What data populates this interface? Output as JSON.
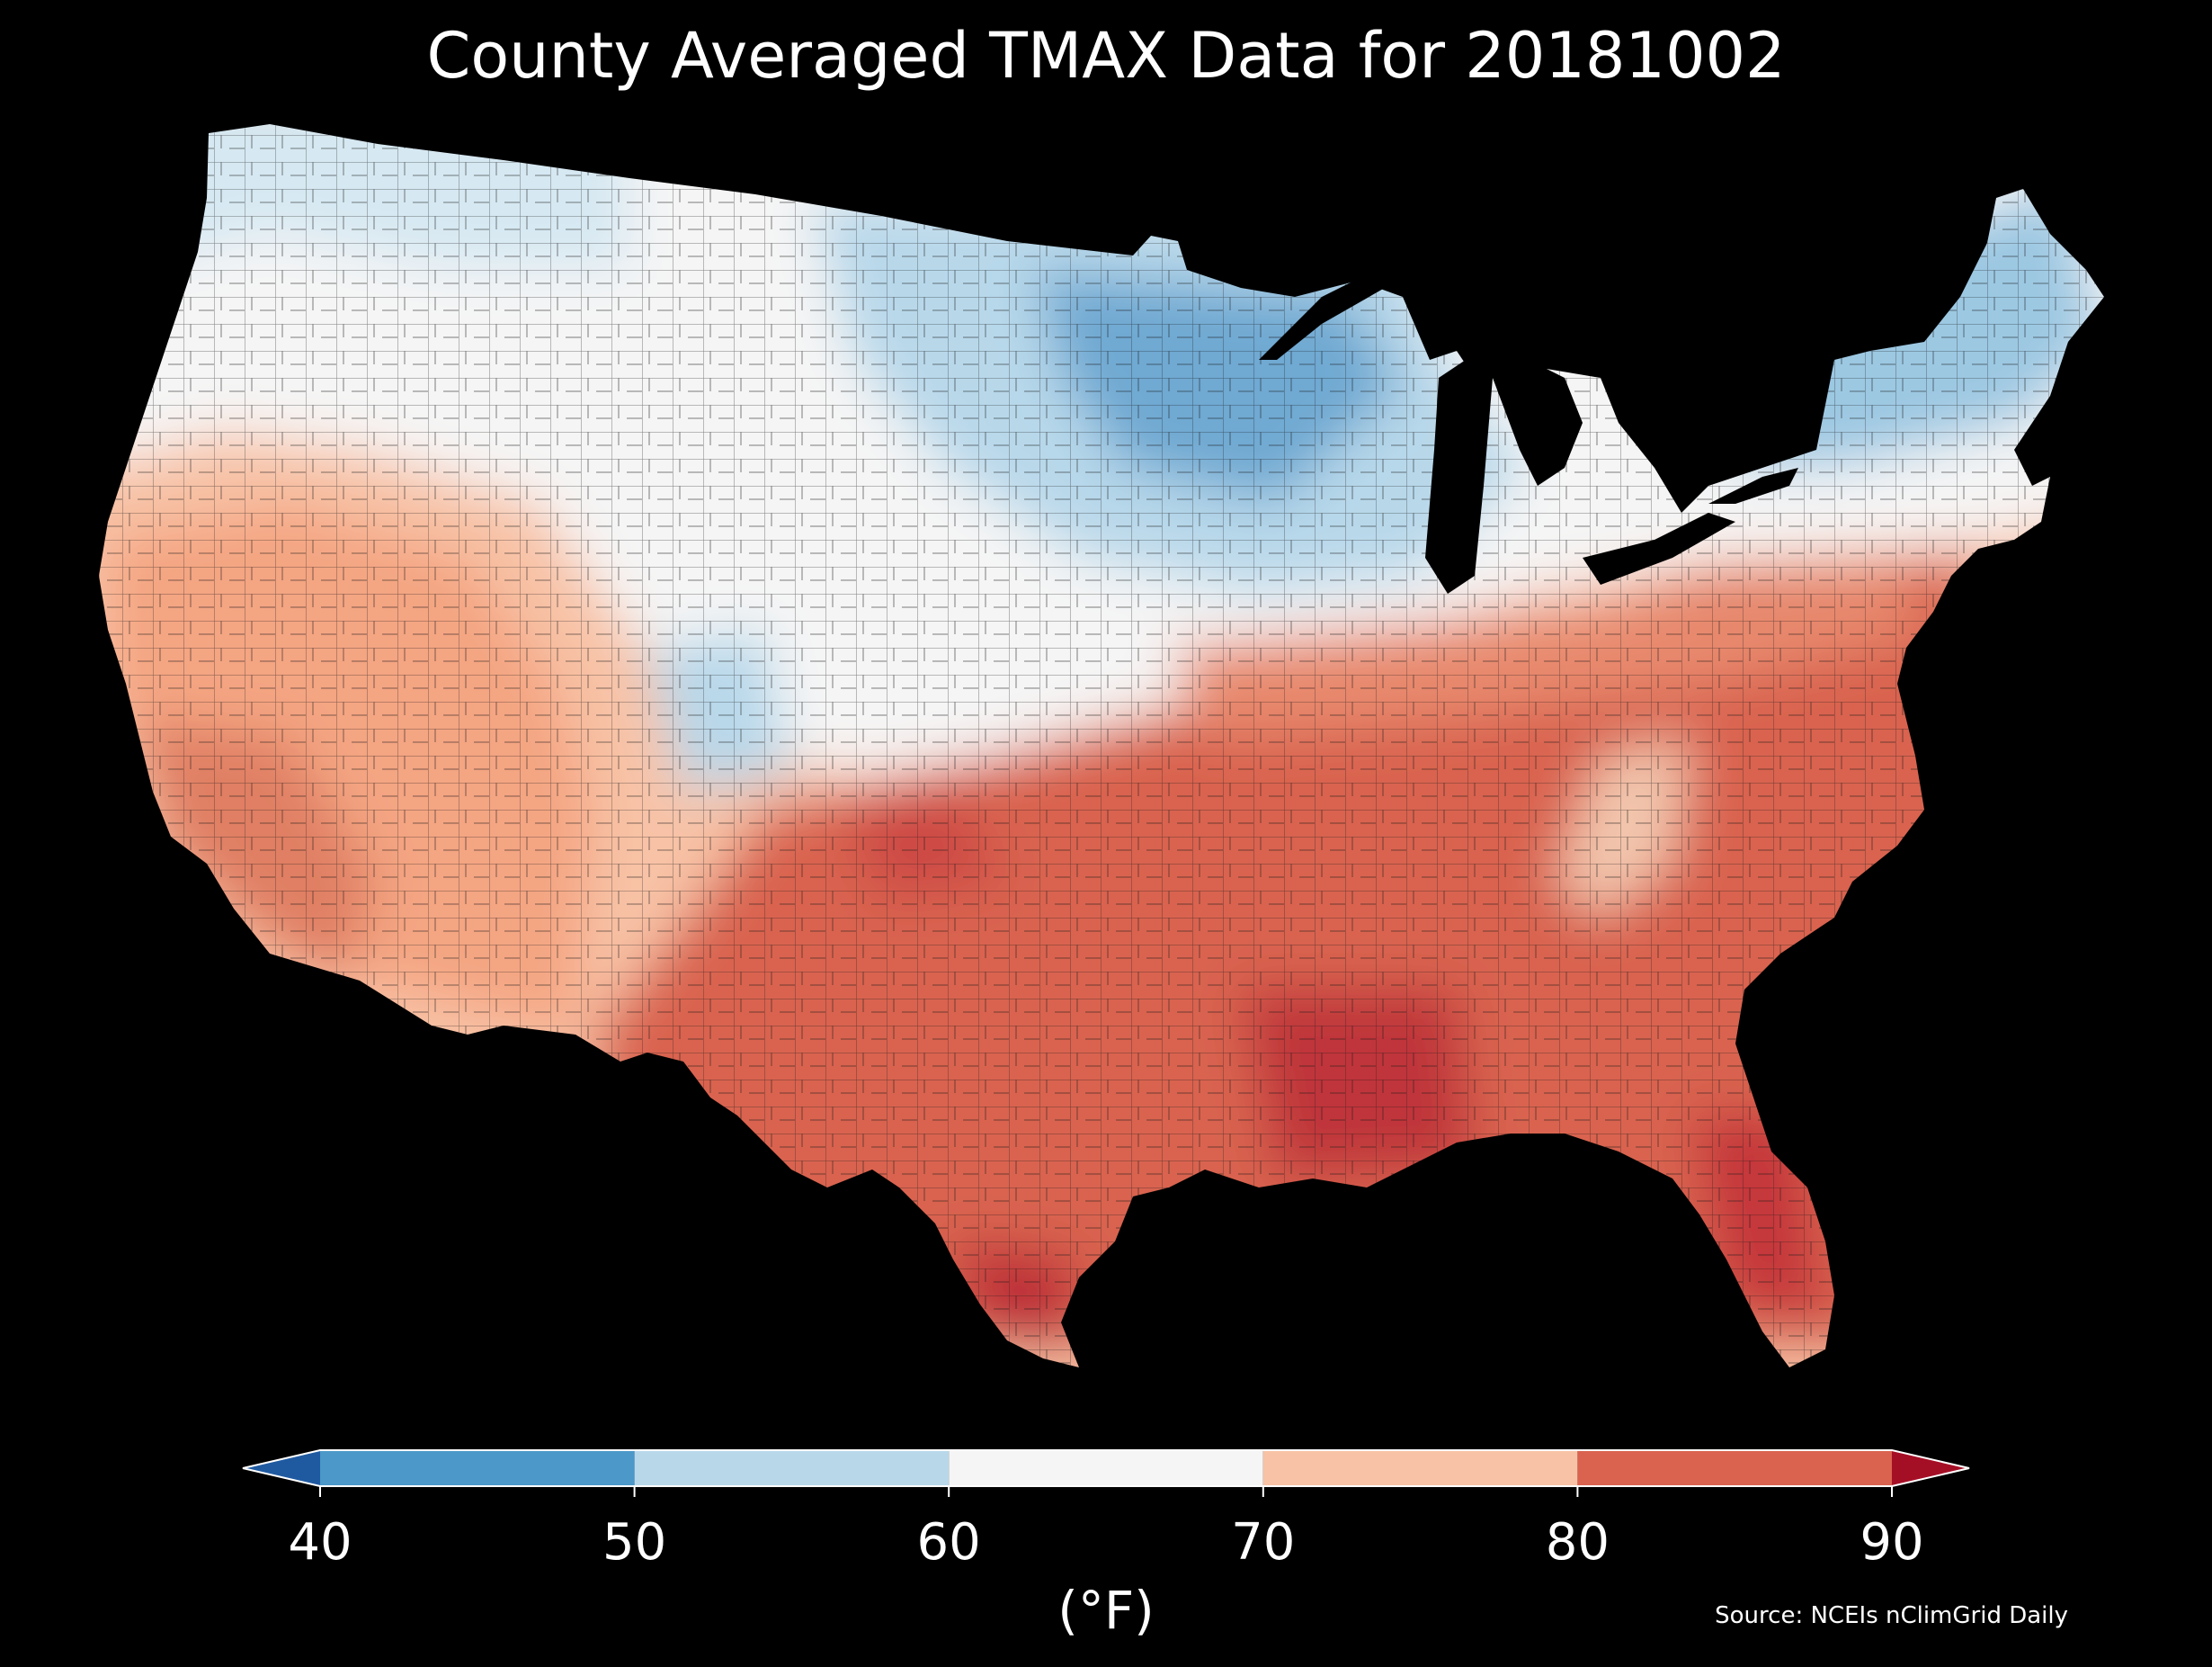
{
  "title": "County Averaged TMAX Data for 20181002",
  "colorbar": {
    "units": "(°F)",
    "ticks": [
      "40",
      "50",
      "60",
      "70",
      "80",
      "90"
    ],
    "tick_values": [
      40,
      50,
      60,
      70,
      80,
      90
    ],
    "bins": [
      {
        "from": 40,
        "to": 50,
        "color": "#4b98c9"
      },
      {
        "from": 50,
        "to": 60,
        "color": "#b8d8ea"
      },
      {
        "from": 60,
        "to": 70,
        "color": "#f5f5f5"
      },
      {
        "from": 70,
        "to": 80,
        "color": "#f8c2a6"
      },
      {
        "from": 80,
        "to": 90,
        "color": "#d9634f"
      }
    ],
    "under_color": "#1f5aa1",
    "over_color": "#a50f26"
  },
  "source": "Source: NCEIs nClimGrid Daily",
  "colors": {
    "background": "#000000",
    "text": "#ffffff",
    "county_border": "#1a1a1a"
  }
}
